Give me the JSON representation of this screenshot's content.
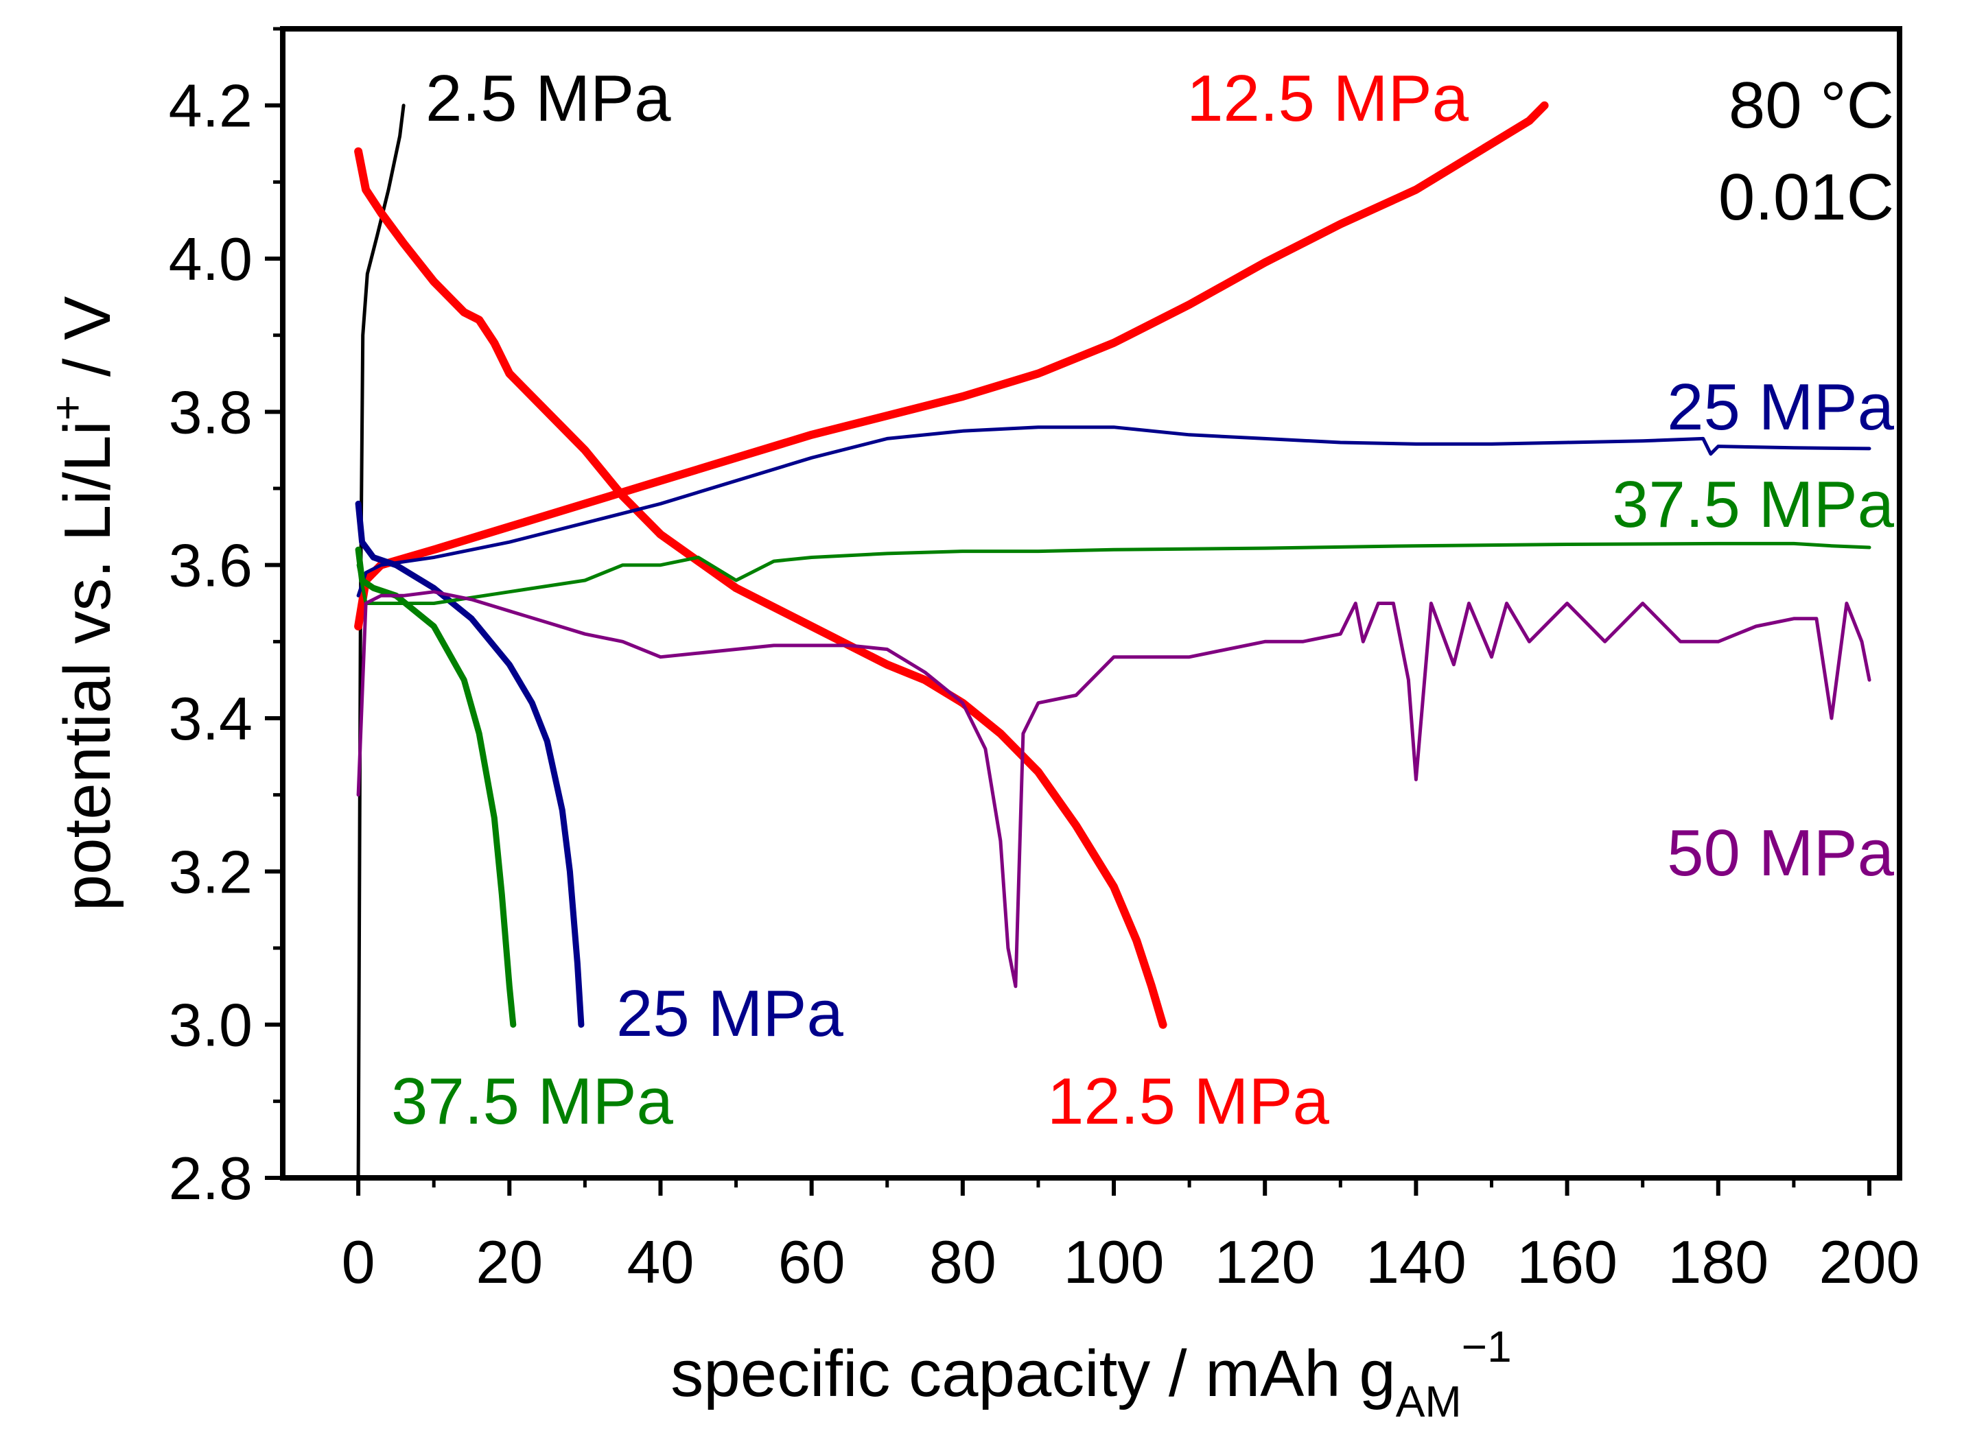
{
  "chart_data": {
    "type": "line",
    "title": "",
    "xlabel": {
      "main": "specific capacity / mAh g",
      "sub": "AM",
      "sup": "−1"
    },
    "ylabel": {
      "main": "potential vs. Li/Li",
      "sup": "+",
      "tail": " / V"
    },
    "xlim": [
      -10,
      204
    ],
    "ylim": [
      2.8,
      4.3
    ],
    "xticks": [
      0,
      20,
      40,
      60,
      80,
      100,
      120,
      140,
      160,
      180,
      200
    ],
    "xtick_labels": [
      "0",
      "20",
      "40",
      "60",
      "80",
      "100",
      "120",
      "140",
      "160",
      "180",
      "200"
    ],
    "yticks": [
      2.8,
      3.0,
      3.2,
      3.4,
      3.6,
      3.8,
      4.0,
      4.2
    ],
    "ytick_labels": [
      "2.8",
      "3.0",
      "3.2",
      "3.4",
      "3.6",
      "3.8",
      "4.0",
      "4.2"
    ],
    "grid": false,
    "conditions": [
      "80 °C",
      "0.01C"
    ],
    "colors": {
      "black": "#000000",
      "red": "#ff0000",
      "blue": "#00008b",
      "green": "#008000",
      "purple": "#800080"
    },
    "series": [
      {
        "name": "2.5 MPa charge",
        "label": "2.5 MPa",
        "color": "#000000",
        "width": 5,
        "x": [
          0,
          0.3,
          0.6,
          1.2,
          2.5,
          4.0,
          5.5,
          6.0
        ],
        "y": [
          2.8,
          3.55,
          3.9,
          3.98,
          4.03,
          4.09,
          4.16,
          4.2
        ]
      },
      {
        "name": "12.5 MPa charge",
        "label": "12.5 MPa",
        "color": "#ff0000",
        "width": 12,
        "x": [
          0,
          1,
          3,
          10,
          20,
          30,
          40,
          50,
          60,
          70,
          80,
          90,
          100,
          110,
          120,
          130,
          140,
          150,
          155,
          157
        ],
        "y": [
          3.52,
          3.58,
          3.6,
          3.62,
          3.65,
          3.68,
          3.71,
          3.74,
          3.77,
          3.795,
          3.82,
          3.85,
          3.89,
          3.94,
          3.995,
          4.045,
          4.09,
          4.15,
          4.18,
          4.2
        ]
      },
      {
        "name": "12.5 MPa discharge",
        "label": "12.5 MPa",
        "color": "#ff0000",
        "width": 12,
        "x": [
          0,
          1,
          3,
          6,
          10,
          12,
          14,
          16,
          18,
          20,
          25,
          30,
          35,
          40,
          50,
          60,
          70,
          75,
          80,
          85,
          90,
          95,
          100,
          103,
          105,
          106.5
        ],
        "y": [
          4.14,
          4.09,
          4.06,
          4.02,
          3.97,
          3.95,
          3.93,
          3.92,
          3.89,
          3.85,
          3.8,
          3.75,
          3.69,
          3.64,
          3.57,
          3.52,
          3.47,
          3.45,
          3.42,
          3.38,
          3.33,
          3.26,
          3.18,
          3.11,
          3.05,
          3.0
        ]
      },
      {
        "name": "25 MPa charge",
        "label": "25 MPa",
        "color": "#00008b",
        "width": 5,
        "x": [
          0,
          1,
          3,
          10,
          20,
          30,
          40,
          50,
          60,
          70,
          80,
          90,
          100,
          110,
          120,
          130,
          140,
          150,
          160,
          170,
          178,
          179,
          180,
          190,
          200
        ],
        "y": [
          3.56,
          3.59,
          3.6,
          3.61,
          3.63,
          3.655,
          3.68,
          3.71,
          3.74,
          3.765,
          3.775,
          3.78,
          3.78,
          3.77,
          3.765,
          3.76,
          3.758,
          3.758,
          3.76,
          3.762,
          3.765,
          3.745,
          3.755,
          3.753,
          3.752
        ]
      },
      {
        "name": "25 MPa discharge",
        "label": "25 MPa",
        "color": "#00008b",
        "width": 9,
        "x": [
          0,
          0.5,
          2,
          5,
          10,
          15,
          20,
          23,
          25,
          27,
          28,
          29,
          29.5
        ],
        "y": [
          3.68,
          3.63,
          3.61,
          3.6,
          3.57,
          3.53,
          3.47,
          3.42,
          3.37,
          3.28,
          3.2,
          3.08,
          3.0
        ]
      },
      {
        "name": "37.5 MPa charge",
        "label": "37.5 MPa",
        "color": "#008000",
        "width": 5,
        "x": [
          0,
          1,
          3,
          5,
          10,
          20,
          30,
          35,
          40,
          45,
          50,
          55,
          60,
          70,
          80,
          90,
          100,
          120,
          140,
          160,
          180,
          190,
          195,
          200
        ],
        "y": [
          3.6,
          3.55,
          3.55,
          3.55,
          3.55,
          3.565,
          3.58,
          3.6,
          3.6,
          3.61,
          3.58,
          3.605,
          3.61,
          3.615,
          3.618,
          3.618,
          3.62,
          3.622,
          3.625,
          3.627,
          3.628,
          3.628,
          3.625,
          3.623
        ]
      },
      {
        "name": "37.5 MPa discharge",
        "label": "37.5 MPa",
        "color": "#008000",
        "width": 9,
        "x": [
          0,
          0.5,
          2,
          5,
          10,
          14,
          16,
          18,
          19,
          20,
          20.5
        ],
        "y": [
          3.62,
          3.58,
          3.57,
          3.56,
          3.52,
          3.45,
          3.38,
          3.27,
          3.17,
          3.05,
          3.0
        ]
      },
      {
        "name": "50 MPa",
        "label": "50 MPa",
        "color": "#800080",
        "width": 5,
        "x": [
          0,
          1,
          3,
          6,
          10,
          15,
          20,
          25,
          30,
          35,
          40,
          45,
          50,
          55,
          60,
          65,
          70,
          75,
          80,
          83,
          85,
          86,
          87,
          88,
          90,
          95,
          100,
          110,
          120,
          125,
          130,
          132,
          133,
          135,
          137,
          139,
          140,
          142,
          145,
          147,
          150,
          152,
          155,
          160,
          165,
          170,
          175,
          180,
          185,
          190,
          193,
          195,
          197,
          199,
          200
        ],
        "y": [
          3.3,
          3.55,
          3.56,
          3.56,
          3.565,
          3.555,
          3.54,
          3.525,
          3.51,
          3.5,
          3.48,
          3.485,
          3.49,
          3.495,
          3.495,
          3.495,
          3.49,
          3.46,
          3.42,
          3.36,
          3.24,
          3.1,
          3.05,
          3.38,
          3.42,
          3.43,
          3.48,
          3.48,
          3.5,
          3.5,
          3.51,
          3.55,
          3.5,
          3.55,
          3.55,
          3.45,
          3.32,
          3.55,
          3.47,
          3.55,
          3.48,
          3.55,
          3.5,
          3.55,
          3.5,
          3.55,
          3.5,
          3.5,
          3.52,
          3.53,
          3.53,
          3.4,
          3.55,
          3.5,
          3.45
        ]
      }
    ],
    "annotations": [
      {
        "text": "2.5 MPa",
        "color": "#000000"
      },
      {
        "text": "12.5 MPa",
        "color": "#ff0000"
      },
      {
        "text": "25 MPa",
        "color": "#00008b"
      },
      {
        "text": "37.5 MPa",
        "color": "#008000"
      },
      {
        "text": "50 MPa",
        "color": "#800080"
      },
      {
        "text": "25 MPa",
        "color": "#00008b"
      },
      {
        "text": "37.5 MPa",
        "color": "#008000"
      },
      {
        "text": "12.5 MPa",
        "color": "#ff0000"
      }
    ]
  }
}
